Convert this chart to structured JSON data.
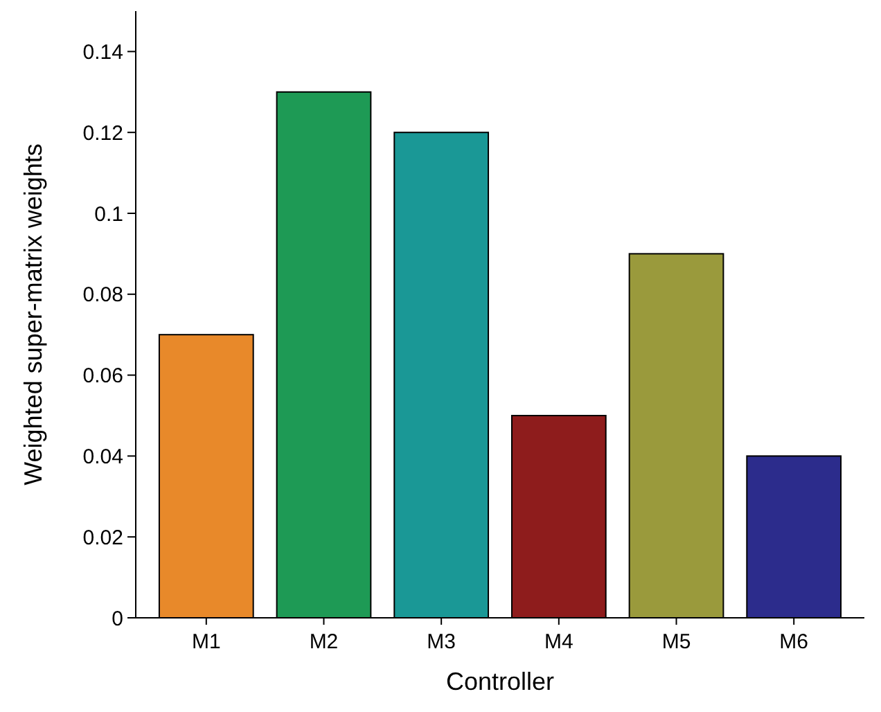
{
  "chart_data": {
    "type": "bar",
    "xlabel": "Controller",
    "ylabel": "Weighted super-matrix weights",
    "categories": [
      "M1",
      "M2",
      "M3",
      "M4",
      "M5",
      "M6"
    ],
    "values": [
      0.07,
      0.13,
      0.12,
      0.05,
      0.09,
      0.04
    ],
    "colors": [
      "#e8892a",
      "#1e9a55",
      "#1a9896",
      "#8e1c1c",
      "#9a9a3c",
      "#2c2c8c"
    ],
    "ylim": [
      0,
      0.15
    ],
    "yticks": [
      0,
      0.02,
      0.04,
      0.06,
      0.08,
      0.1,
      0.12,
      0.14
    ],
    "grid": false
  }
}
